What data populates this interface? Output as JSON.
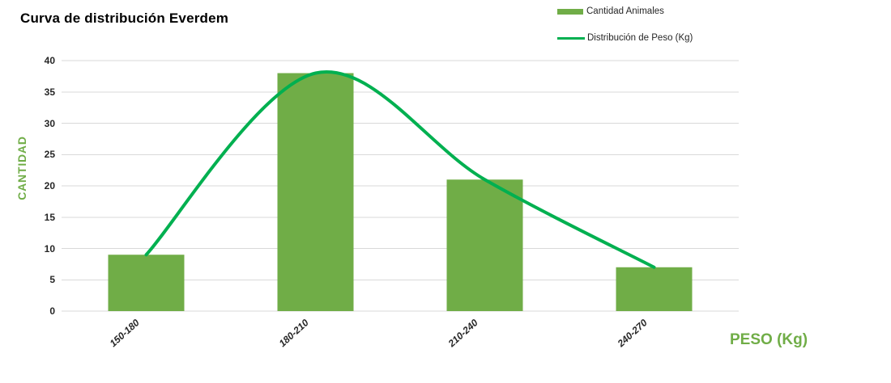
{
  "title": "Curva de distribución Everdem",
  "legend": [
    {
      "label": "Cantidad Animales",
      "type": "bar"
    },
    {
      "label": "Distribución de Peso (Kg)",
      "type": "line"
    }
  ],
  "colors": {
    "bar": "#70AD47",
    "line": "#00B050",
    "axis_title": "#70AD47",
    "grid": "#D9D9D9",
    "tick_text": "#262626"
  },
  "chart_data": {
    "type": "bar",
    "subtype": "combo-bar-line",
    "title": "Curva de distribución Everdem",
    "categories": [
      "150-180",
      "180-210",
      "210-240",
      "240-270"
    ],
    "series": [
      {
        "name": "Cantidad Animales",
        "type": "bar",
        "color": "#70AD47",
        "values": [
          9,
          38,
          21,
          7
        ]
      },
      {
        "name": "Distribución de Peso (Kg)",
        "type": "line",
        "smooth": true,
        "color": "#00B050",
        "values": [
          9,
          38,
          21,
          7
        ]
      }
    ],
    "xlabel": "PESO (Kg)",
    "ylabel": "CANTIDAD",
    "ylim": [
      0,
      40
    ],
    "ytick_step": 5,
    "yticks": [
      0,
      5,
      10,
      15,
      20,
      25,
      30,
      35,
      40
    ],
    "grid": true,
    "legend_position": "top-right"
  }
}
